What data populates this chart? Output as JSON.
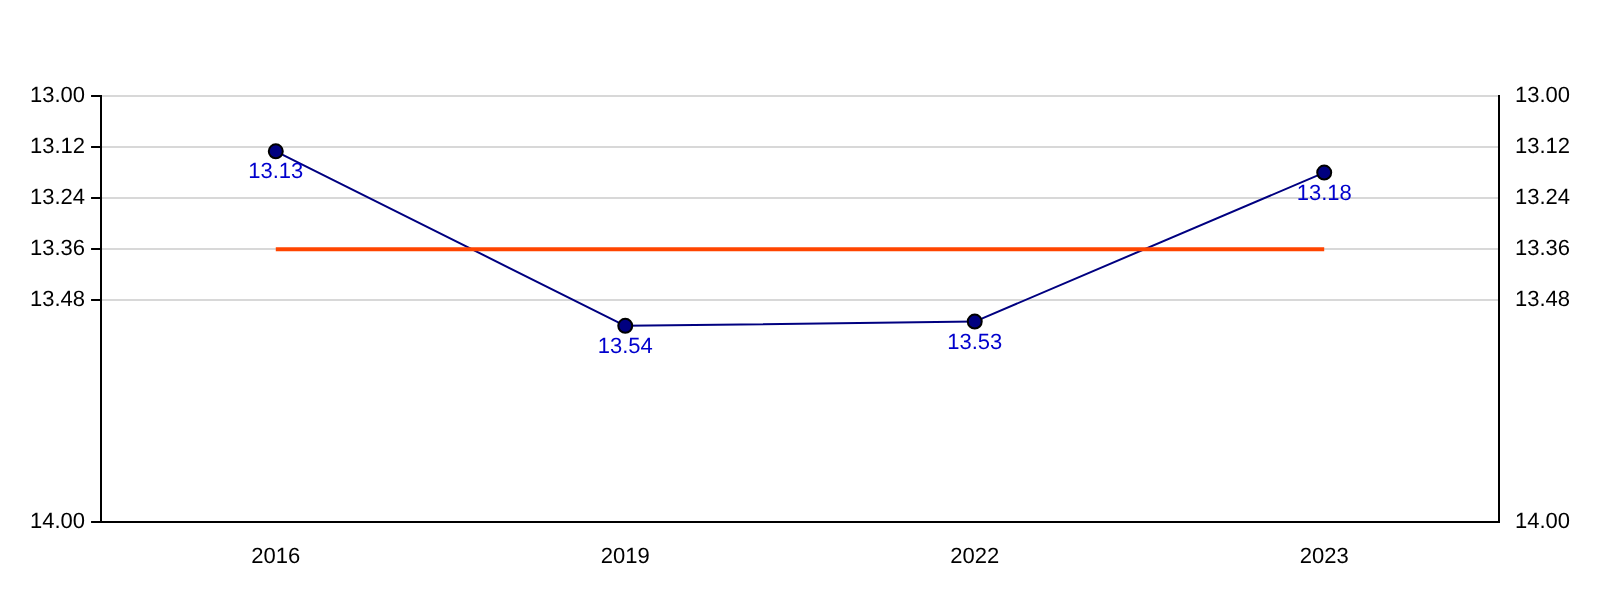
{
  "chart_data": {
    "type": "line",
    "categories": [
      "2016",
      "2019",
      "2022",
      "2023"
    ],
    "series": [
      {
        "color": "#000080",
        "values": [
          13.13,
          13.54,
          13.53,
          13.18
        ]
      }
    ],
    "ylim": [
      14.0,
      13.0
    ],
    "yticks": [
      {
        "value": 13.0,
        "label": "13.00"
      },
      13.12,
      13.24,
      13.36,
      13.48,
      {
        "value": 14.0,
        "label": "14.00"
      }
    ],
    "y2lim": [
      14.0,
      13.0
    ],
    "y2ticks": [
      {
        "value": 13.0,
        "label": "13.00"
      },
      13.12,
      13.24,
      13.36,
      13.48,
      {
        "value": 14.0,
        "label": "14.00"
      }
    ],
    "ref_lines": [
      {
        "axis": "y",
        "value": 13.36,
        "color": "#ff4500"
      }
    ],
    "grid": "y",
    "marker": "circle",
    "line_style": "solid",
    "data_labels": true,
    "legend": false
  }
}
